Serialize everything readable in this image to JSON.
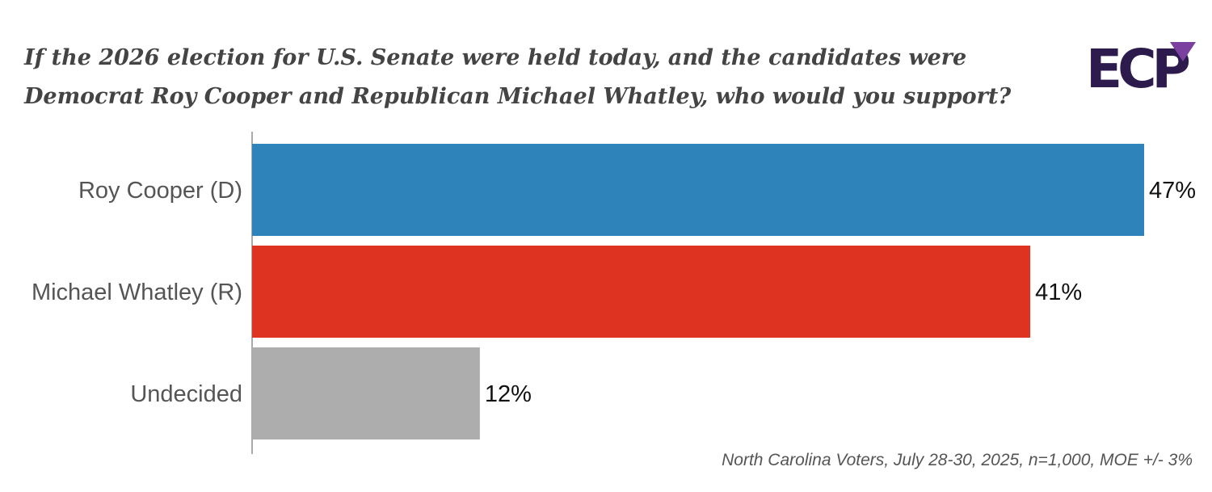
{
  "title_lines": [
    "If the 2026 election for U.S. Senate were held today, and the candidates were",
    "Democrat Roy Cooper and Republican Michael Whatley, who would you support?"
  ],
  "logo": {
    "text": "ECP",
    "colors": {
      "dark": "#2d1b4e",
      "accent": "#7b3fa0"
    }
  },
  "chart_data": {
    "type": "bar",
    "orientation": "horizontal",
    "categories": [
      "Roy Cooper (D)",
      "Michael Whatley (R)",
      "Undecided"
    ],
    "values": [
      47,
      41,
      12
    ],
    "value_labels": [
      "47%",
      "41%",
      "12%"
    ],
    "colors": [
      "#2e83ba",
      "#de3320",
      "#adadad"
    ],
    "xlim": [
      0,
      47
    ],
    "grid": false,
    "legend": "none"
  },
  "footnote": "North Carolina Voters, July 28-30, 2025, n=1,000, MOE +/- 3%"
}
